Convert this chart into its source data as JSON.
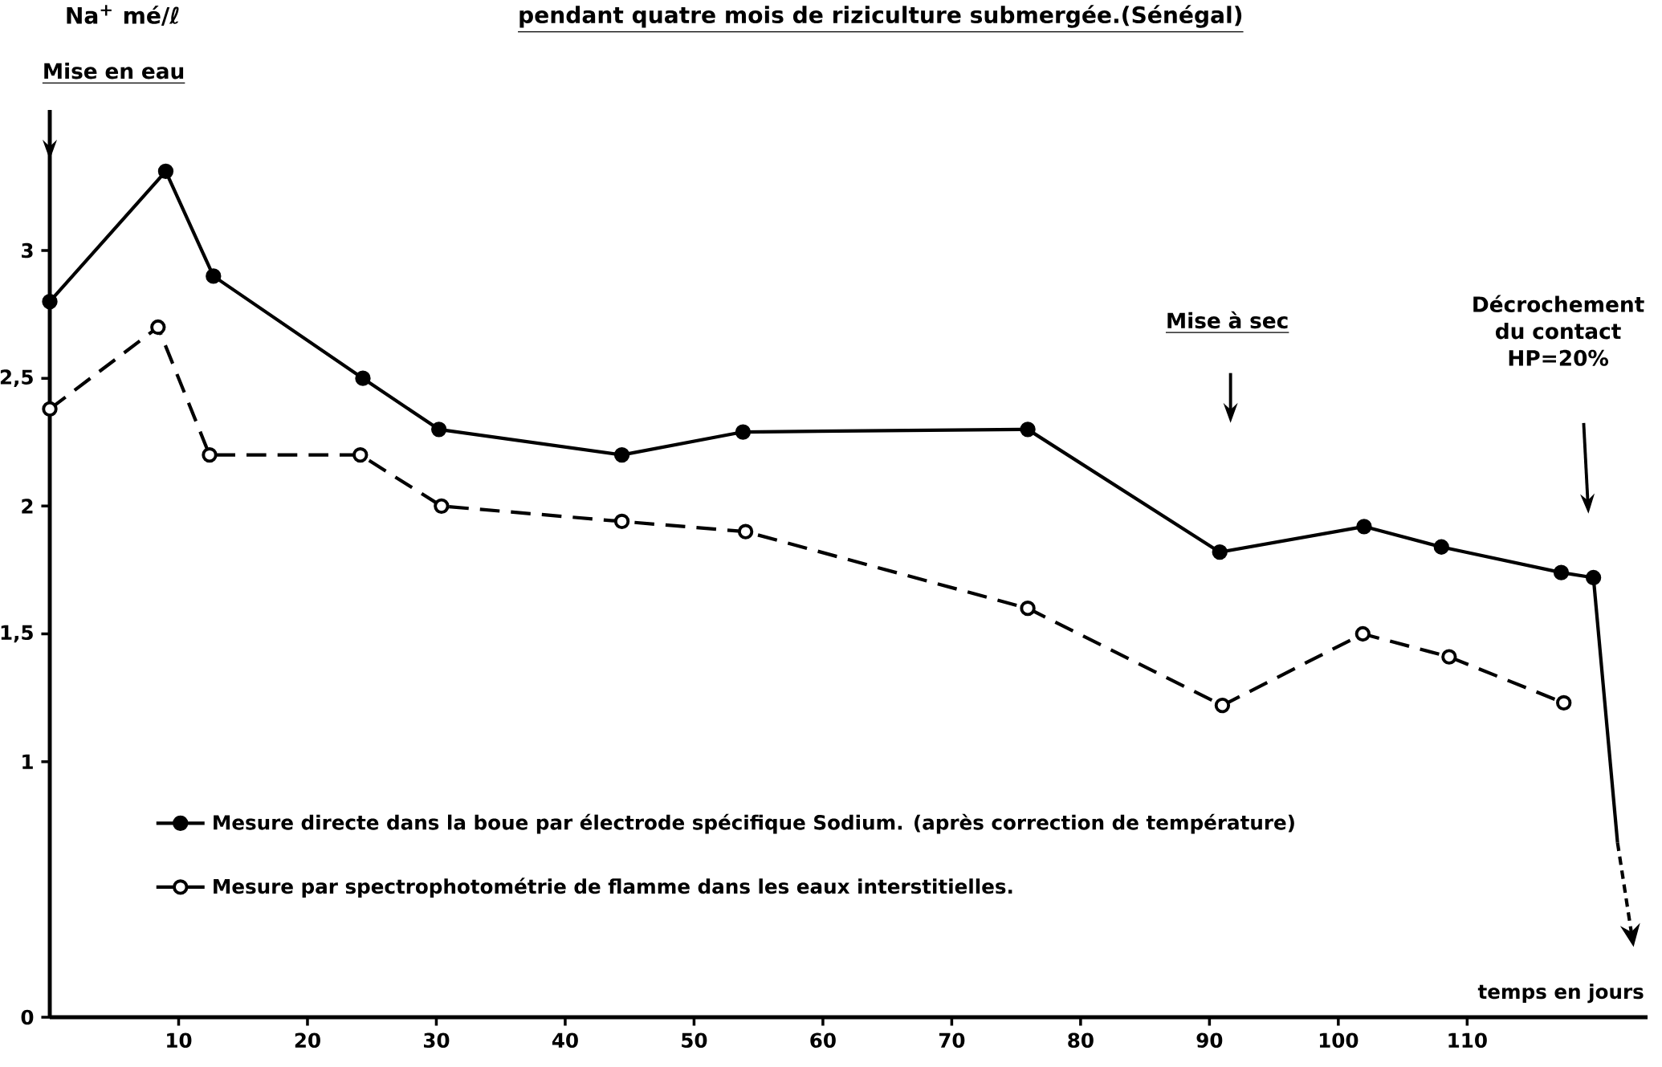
{
  "chart_data": {
    "type": "line",
    "title": "pendant quatre mois de riziculture submergée.(Sénégal)",
    "xlabel": "temps en jours",
    "ylabel": "Na$^{+}$ mé/ℓ",
    "xlim": [
      0,
      124
    ],
    "ylim": [
      0,
      3.55
    ],
    "xticks": [
      10,
      20,
      30,
      40,
      50,
      60,
      70,
      80,
      90,
      100,
      110
    ],
    "yticks": [
      {
        "value": 0,
        "label": "0"
      },
      {
        "value": 1,
        "label": "1"
      },
      {
        "value": 1.5,
        "label": "1,5"
      },
      {
        "value": 2,
        "label": "2"
      },
      {
        "value": 2.5,
        "label": "2,5"
      },
      {
        "value": 3,
        "label": "3"
      }
    ],
    "legend": "bottom left",
    "marker": "circle",
    "series": [
      {
        "name": "Mesure directe dans la boue par électrode spécifique Sodium. (après correction de température)",
        "color": "#000000",
        "line_style": "solid",
        "x": [
          0,
          9,
          12.7,
          24.3,
          30.2,
          44.4,
          53.8,
          75.9,
          90.8,
          102,
          108,
          117.3,
          119.8
        ],
        "values": [
          2.8,
          3.31,
          2.9,
          2.5,
          2.3,
          2.2,
          2.29,
          2.3,
          1.82,
          1.92,
          1.84,
          1.74,
          1.72
        ]
      },
      {
        "name": "Mesure par spectrophotométrie de flamme dans les eaux interstitielles.",
        "color": "#000000",
        "line_style": "dashed",
        "x": [
          0,
          8.4,
          12.4,
          24.1,
          30.4,
          44.4,
          54,
          75.9,
          91,
          101.9,
          108.6,
          117.5
        ],
        "values": [
          2.38,
          2.7,
          2.2,
          2.2,
          2.0,
          1.94,
          1.9,
          1.6,
          1.22,
          1.5,
          1.41,
          1.23
        ]
      }
    ],
    "annotations": [
      "Mise en eau",
      "Mise à sec",
      "Décrochement du contact HP=20%"
    ]
  }
}
